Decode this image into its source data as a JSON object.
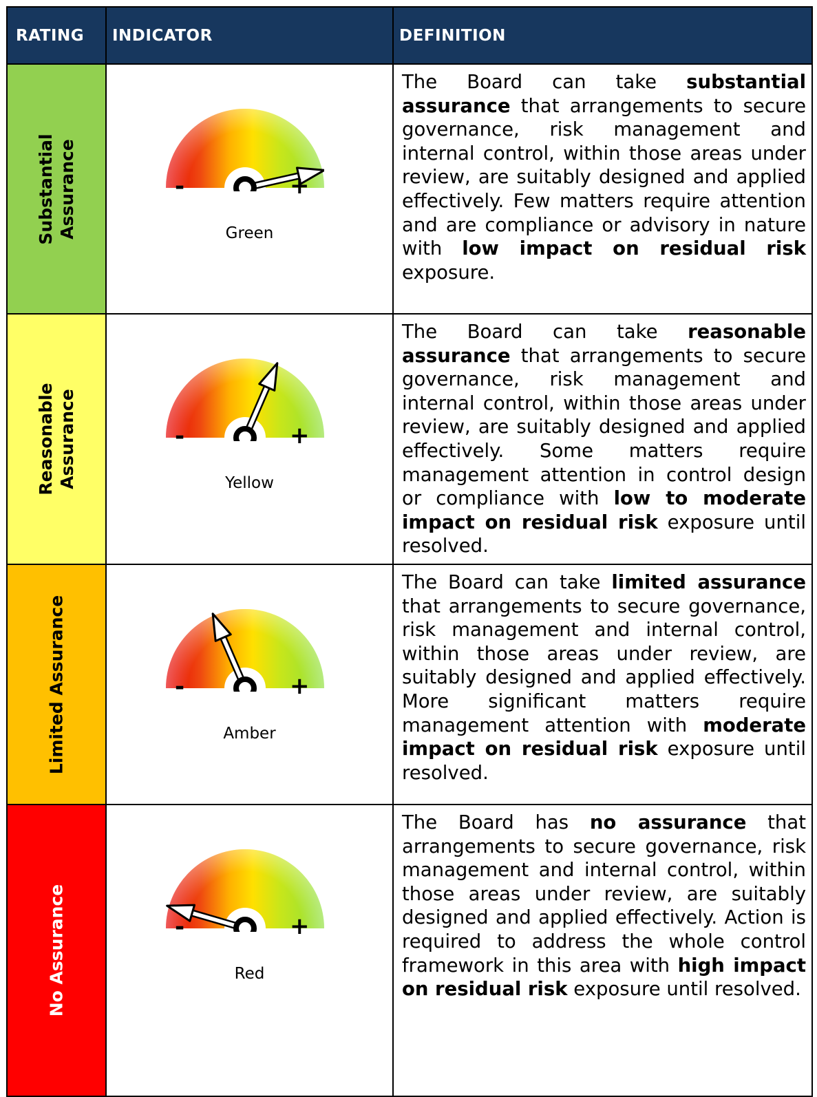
{
  "headers": {
    "rating": "RATING",
    "indicator": "INDICATOR",
    "definition": "DEFINITION"
  },
  "gauge_signs": {
    "minus": "-",
    "plus": "+"
  },
  "rows": [
    {
      "rating_lines": [
        "Substantial",
        "Assurance"
      ],
      "rating_color": "#92d050",
      "rating_text_color": "#000000",
      "indicator_label": "Green",
      "needle_level": 0.93,
      "definition": [
        {
          "t": "The Board can take ",
          "b": false
        },
        {
          "t": "substantial assurance",
          "b": true
        },
        {
          "t": " that arrangements to secure governance, risk management and internal control, within those areas under review, are suitably designed and applied effectively.  Few matters require attention and are compliance or advisory in nature with ",
          "b": false
        },
        {
          "t": "low impact on residual risk",
          "b": true
        },
        {
          "t": " exposure.",
          "b": false
        }
      ]
    },
    {
      "rating_lines": [
        "Reasonable",
        "Assurance"
      ],
      "rating_color": "#ffff66",
      "rating_text_color": "#000000",
      "indicator_label": "Yellow",
      "needle_level": 0.63,
      "definition": [
        {
          "t": "The Board can take ",
          "b": false
        },
        {
          "t": "reasonable assurance",
          "b": true
        },
        {
          "t": " that arrangements to secure governance, risk management and internal control, within those areas under review, are suitably designed and applied effectively.  Some matters require management attention in control design or compliance with ",
          "b": false
        },
        {
          "t": "low to moderate impact on residual risk",
          "b": true
        },
        {
          "t": " exposure until resolved.",
          "b": false
        }
      ]
    },
    {
      "rating_lines": [
        "Limited Assurance"
      ],
      "rating_color": "#ffc000",
      "rating_text_color": "#000000",
      "indicator_label": "Amber",
      "needle_level": 0.37,
      "definition": [
        {
          "t": "The Board can take ",
          "b": false
        },
        {
          "t": "limited assurance",
          "b": true
        },
        {
          "t": " that arrangements to secure governance, risk management and internal control, within those areas under review, are suitably designed and applied effectively.  More significant matters require management attention with ",
          "b": false
        },
        {
          "t": "moderate impact on residual risk",
          "b": true
        },
        {
          "t": " exposure until resolved.",
          "b": false
        }
      ]
    },
    {
      "rating_lines": [
        "No Assurance"
      ],
      "rating_color": "#ff0000",
      "rating_text_color": "#ffffff",
      "indicator_label": "Red",
      "needle_level": 0.09,
      "definition": [
        {
          "t": "The Board has ",
          "b": false
        },
        {
          "t": "no assurance",
          "b": true
        },
        {
          "t": " that arrangements to secure governance, risk management and internal control, within those areas under review, are suitably designed and applied effectively.  Action is required to address the whole control framework in this area with ",
          "b": false
        },
        {
          "t": "high impact on residual risk",
          "b": true
        },
        {
          "t": " exposure until resolved.",
          "b": false
        }
      ]
    }
  ]
}
